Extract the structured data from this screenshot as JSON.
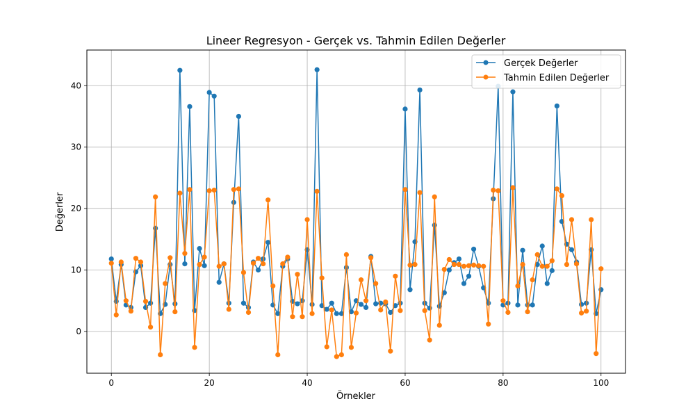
{
  "chart_data": {
    "type": "line",
    "title": "Lineer Regresyon - Gerçek vs. Tahmin Edilen Değerler",
    "xlabel": "Örnekler",
    "ylabel": "Değerler",
    "xlim": [
      -5,
      105
    ],
    "ylim": [
      -6.8,
      45.8
    ],
    "xticks": [
      0,
      20,
      40,
      60,
      80,
      100
    ],
    "yticks": [
      0,
      10,
      20,
      30,
      40
    ],
    "grid": true,
    "legend_position": "top-right",
    "series": [
      {
        "name": "Gerçek Değerler",
        "color": "#1f77b4",
        "marker": "circle",
        "values": [
          11.8,
          4.9,
          10.9,
          4.3,
          3.9,
          9.7,
          10.7,
          3.9,
          4.6,
          16.8,
          2.9,
          4.4,
          10.9,
          4.5,
          42.5,
          11.0,
          36.6,
          3.4,
          13.5,
          10.7,
          38.9,
          38.3,
          8.0,
          11.0,
          4.6,
          21.0,
          35.0,
          4.6,
          3.9,
          11.3,
          10.0,
          11.8,
          14.5,
          4.3,
          2.9,
          10.6,
          11.8,
          4.9,
          4.5,
          5.0,
          13.3,
          4.4,
          42.6,
          4.2,
          3.6,
          4.6,
          2.9,
          2.9,
          10.4,
          3.2,
          5.0,
          4.4,
          3.9,
          12.2,
          4.5,
          4.6,
          4.5,
          3.1,
          4.2,
          4.6,
          36.2,
          6.8,
          14.6,
          39.3,
          4.6,
          3.8,
          17.3,
          4.1,
          6.3,
          10.0,
          11.2,
          11.8,
          7.8,
          9.0,
          13.4,
          10.6,
          7.1,
          4.6,
          21.6,
          39.9,
          4.3,
          4.6,
          39.0,
          4.3,
          13.2,
          4.3,
          4.3,
          10.9,
          13.9,
          7.8,
          9.9,
          36.7,
          17.9,
          14.2,
          13.3,
          11.3,
          4.4,
          4.6,
          13.3,
          2.9,
          6.8
        ]
      },
      {
        "name": "Tahmin Edilen Değerler",
        "color": "#ff7f0e",
        "marker": "circle",
        "values": [
          11.1,
          2.7,
          11.3,
          5.0,
          3.3,
          11.9,
          11.3,
          4.9,
          0.7,
          21.9,
          -3.8,
          7.8,
          12.0,
          3.2,
          22.5,
          12.7,
          23.1,
          -2.6,
          10.9,
          12.1,
          22.9,
          23.0,
          10.6,
          11.0,
          3.6,
          23.1,
          23.2,
          9.6,
          3.1,
          11.1,
          11.9,
          11.0,
          21.4,
          7.4,
          -3.8,
          11.0,
          12.1,
          2.4,
          9.3,
          2.4,
          18.2,
          2.9,
          22.8,
          8.7,
          -2.5,
          3.5,
          -4.1,
          -3.8,
          12.5,
          -2.6,
          3.0,
          8.4,
          5.0,
          12.0,
          7.8,
          3.5,
          4.8,
          -3.2,
          9.0,
          3.4,
          23.1,
          10.8,
          10.9,
          22.6,
          3.4,
          -1.4,
          21.9,
          1.0,
          10.1,
          11.7,
          10.9,
          10.9,
          10.6,
          10.7,
          10.8,
          10.7,
          10.6,
          1.2,
          23.0,
          22.9,
          5.0,
          3.1,
          23.4,
          7.4,
          10.9,
          3.2,
          8.4,
          12.5,
          10.6,
          10.6,
          11.5,
          23.2,
          22.1,
          10.9,
          18.2,
          11.0,
          3.0,
          3.3,
          18.2,
          -3.6,
          10.2
        ]
      }
    ]
  }
}
